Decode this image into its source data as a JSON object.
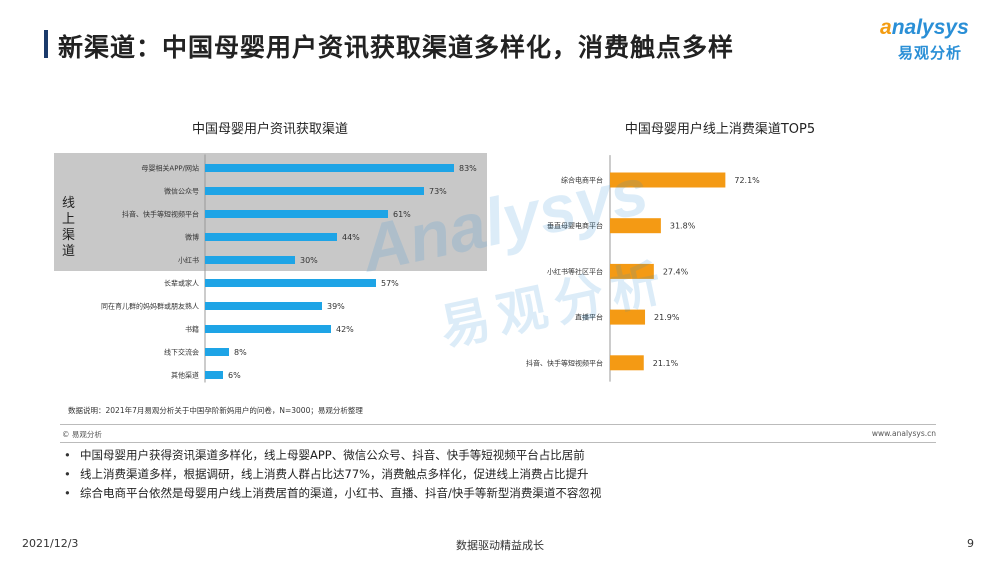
{
  "header": {
    "title": "新渠道：中国母婴用户资讯获取渠道多样化，消费触点多样"
  },
  "logo": {
    "wordmark_first": "a",
    "wordmark_rest": "nalysys",
    "chinese": "易观分析"
  },
  "watermark": {
    "wordmark": "Analysys",
    "chinese": "易观分析"
  },
  "left_panel": {
    "online_group_label": "线上渠道"
  },
  "colors": {
    "left_bar": "#1ea4e6",
    "right_bar": "#f49a14",
    "title_accent": "#1a3a6b",
    "online_box": "#c8c8c8"
  },
  "chart_data": [
    {
      "type": "bar",
      "orientation": "horizontal",
      "title": "中国母婴用户资讯获取渠道",
      "categories": [
        "母婴相关APP/网站",
        "微信公众号",
        "抖音、快手等短视频平台",
        "微博",
        "小红书",
        "长辈或家人",
        "同在育儿群的妈妈群或朋友熟人",
        "书籍",
        "线下交流会",
        "其他渠道"
      ],
      "values": [
        83,
        73,
        61,
        44,
        30,
        57,
        39,
        42,
        8,
        6
      ],
      "value_labels": [
        "83%",
        "73%",
        "61%",
        "44%",
        "30%",
        "57%",
        "39%",
        "42%",
        "8%",
        "6%"
      ],
      "xlim": [
        0,
        100
      ]
    },
    {
      "type": "bar",
      "orientation": "horizontal",
      "title": "中国母婴用户线上消费渠道TOP5",
      "categories": [
        "综合电商平台",
        "垂直母婴电商平台",
        "小红书等社区平台",
        "直播平台",
        "抖音、快手等短视频平台"
      ],
      "values": [
        72.1,
        31.8,
        27.4,
        21.9,
        21.1
      ],
      "value_labels": [
        "72.1%",
        "31.8%",
        "27.4%",
        "21.9%",
        "21.1%"
      ],
      "xlim": [
        0,
        100
      ]
    }
  ],
  "notes": {
    "data_note": "数据说明：2021年7月易观分析关于中国孕阶新妈用户的问卷，N=3000；易观分析整理",
    "copyright": "© 易观分析",
    "website": "www.analysys.cn"
  },
  "bullets": [
    "中国母婴用户获得资讯渠道多样化，线上母婴APP、微信公众号、抖音、快手等短视频平台占比居前",
    "线上消费渠道多样，根据调研，线上消费人群占比达77%，消费触点多样化，促进线上消费占比提升",
    "综合电商平台依然是母婴用户线上消费居首的渠道，小红书、直播、抖音/快手等新型消费渠道不容忽视"
  ],
  "footer": {
    "date": "2021/12/3",
    "slogan": "数据驱动精益成长",
    "page_number": "9"
  }
}
